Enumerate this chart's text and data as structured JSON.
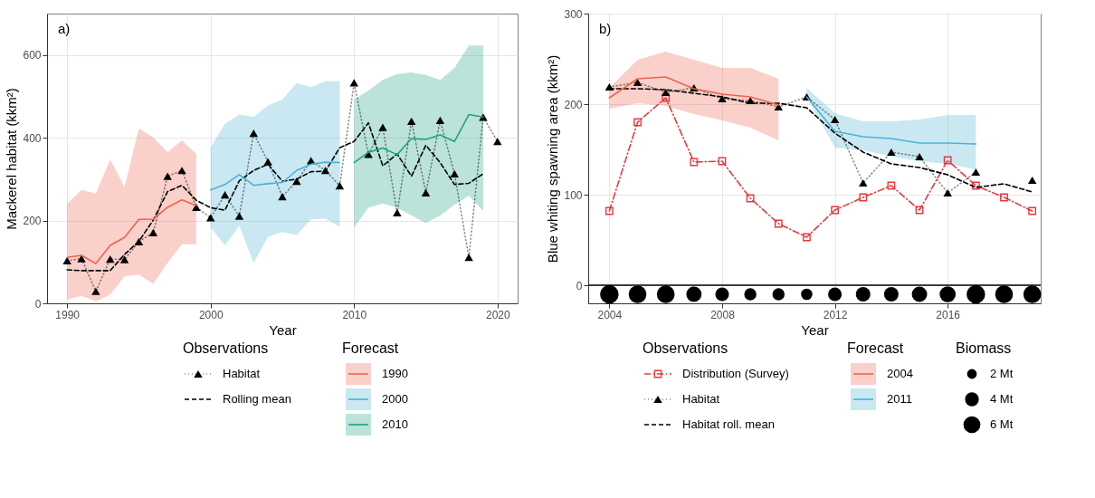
{
  "chart_data": [
    {
      "type": "line",
      "annotations": [
        "a)"
      ],
      "xlabel": "Year",
      "ylabel": "Mackerel habitat (kkm²)",
      "legend_title": [
        "Observations",
        "Forecast"
      ],
      "x": [
        1990,
        1991,
        1992,
        1993,
        1994,
        1995,
        1996,
        1997,
        1998,
        1999,
        2000,
        2001,
        2002,
        2003,
        2004,
        2005,
        2006,
        2007,
        2008,
        2009,
        2010,
        2011,
        2012,
        2013,
        2014,
        2015,
        2016,
        2017,
        2018,
        2019,
        2020
      ],
      "xlim": [
        1988.6,
        2021.4
      ],
      "xticks": [
        1990,
        2000,
        2010,
        2020
      ],
      "ylim": [
        0,
        700
      ],
      "yticks": [
        0,
        200,
        400,
        600
      ],
      "grid": true,
      "legend": "bottom",
      "series": [
        {
          "name": "Habitat",
          "color": "#000000",
          "line_style": "dotted",
          "marker": "triangle",
          "values": [
            103,
            108,
            29,
            107,
            106,
            149,
            171,
            307,
            321,
            232,
            207,
            262,
            211,
            411,
            342,
            258,
            295,
            345,
            321,
            284,
            533,
            360,
            425,
            219,
            440,
            267,
            442,
            313,
            111,
            450,
            391
          ]
        },
        {
          "name": "Rolling mean",
          "color": "#000000",
          "line_style": "dashed",
          "marker": "none",
          "values": [
            81,
            79,
            79,
            79,
            118,
            150,
            201,
            270,
            285,
            249,
            231,
            225,
            296,
            321,
            336,
            295,
            300,
            318,
            319,
            376,
            391,
            436,
            332,
            361,
            307,
            382,
            340,
            287,
            290,
            313,
            null
          ]
        },
        {
          "name": "1990",
          "color": "#f0624f",
          "line_style": "solid",
          "x": [
            1990,
            1991,
            1992,
            1993,
            1994,
            1995,
            1996,
            1997,
            1998,
            1999
          ],
          "values": [
            111,
            116,
            96,
            140,
            159,
            203,
            203,
            232,
            250,
            236
          ],
          "lower": [
            9,
            18,
            5,
            21,
            65,
            69,
            47,
            98,
            143,
            143
          ],
          "upper": [
            241,
            274,
            265,
            347,
            281,
            423,
            401,
            365,
            394,
            361
          ]
        },
        {
          "name": "2000",
          "color": "#4bb3d3",
          "line_style": "solid",
          "x": [
            2000,
            2001,
            2002,
            2003,
            2004,
            2005,
            2006,
            2007,
            2008,
            2009
          ],
          "values": [
            274,
            287,
            311,
            285,
            289,
            292,
            321,
            336,
            341,
            340
          ],
          "lower": [
            183,
            140,
            187,
            98,
            161,
            172,
            165,
            203,
            205,
            185
          ],
          "upper": [
            376,
            434,
            456,
            450,
            478,
            492,
            532,
            522,
            537,
            537
          ]
        },
        {
          "name": "2010",
          "color": "#1ea386",
          "line_style": "solid",
          "x": [
            2010,
            2011,
            2012,
            2013,
            2014,
            2015,
            2016,
            2017,
            2018,
            2019
          ],
          "values": [
            340,
            365,
            375,
            359,
            398,
            396,
            407,
            391,
            456,
            450
          ],
          "lower": [
            183,
            231,
            241,
            231,
            212,
            194,
            212,
            238,
            260,
            223
          ],
          "upper": [
            492,
            514,
            540,
            554,
            558,
            552,
            540,
            569,
            623,
            623
          ]
        }
      ]
    },
    {
      "type": "line",
      "annotations": [
        "b)"
      ],
      "xlabel": "Year",
      "ylabel": "Blue whiting spawning area (kkm²)",
      "legend_title": [
        "Observations",
        "Forecast",
        "Biomass"
      ],
      "x": [
        2004,
        2005,
        2006,
        2007,
        2008,
        2009,
        2010,
        2011,
        2012,
        2013,
        2014,
        2015,
        2016,
        2017,
        2018,
        2019
      ],
      "xlim": [
        2003.25,
        2019.3
      ],
      "xticks": [
        2004,
        2008,
        2012,
        2016
      ],
      "ylim": [
        -20,
        300
      ],
      "yticks": [
        0,
        100,
        200,
        300
      ],
      "grid": true,
      "legend": "bottom",
      "ref_lines": [
        {
          "axis": "y",
          "value": 0,
          "color": "#000000"
        }
      ],
      "size_legend": [
        {
          "value": 2,
          "label": "2 Mt"
        },
        {
          "value": 4,
          "label": "4 Mt"
        },
        {
          "value": 6,
          "label": "6 Mt"
        }
      ],
      "series": [
        {
          "name": "Distribution (Survey)",
          "color": "#e8383d",
          "line_style": "dashdot",
          "marker": "square",
          "values": [
            82,
            180,
            207,
            136,
            137,
            96,
            68,
            53,
            83,
            97,
            110,
            83,
            138,
            110,
            97,
            82
          ]
        },
        {
          "name": "Habitat",
          "color": "#000000",
          "line_style": "dotted",
          "marker": "triangle",
          "values": [
            219,
            224,
            213,
            218,
            206,
            204,
            197,
            208,
            183,
            113,
            147,
            142,
            102,
            125,
            null,
            116
          ]
        },
        {
          "name": "Habitat roll. mean",
          "color": "#000000",
          "line_style": "dashed",
          "marker": "none",
          "values": [
            217,
            217,
            216,
            212,
            208,
            201,
            201,
            196,
            168,
            147,
            134,
            130,
            122,
            108,
            112,
            103
          ]
        },
        {
          "name": "2004",
          "color": "#f0624f",
          "line_style": "solid",
          "x": [
            2004,
            2005,
            2006,
            2007,
            2008,
            2009,
            2010
          ],
          "values": [
            207,
            228,
            230,
            217,
            211,
            208,
            199
          ],
          "lower": [
            195,
            201,
            198,
            189,
            182,
            174,
            160
          ],
          "upper": [
            218,
            249,
            258,
            249,
            240,
            240,
            228
          ]
        },
        {
          "name": "2011",
          "color": "#4bb3d3",
          "line_style": "solid",
          "x": [
            2011,
            2012,
            2013,
            2014,
            2015,
            2016,
            2017
          ],
          "values": [
            208,
            170,
            164,
            162,
            157,
            157,
            156
          ],
          "lower": [
            208,
            152,
            149,
            142,
            137,
            134,
            128
          ],
          "upper": [
            218,
            190,
            181,
            181,
            183,
            188,
            188
          ]
        },
        {
          "type": "bubble",
          "color": "#000000",
          "values": [
            -10,
            -10,
            -10,
            -10,
            -10,
            -10,
            -10,
            -10,
            -10,
            -10,
            -10,
            -10,
            -10,
            -10,
            -10,
            -10
          ],
          "sizes": [
            7.2,
            6.6,
            6.6,
            4.9,
            3.9,
            3.1,
            3.1,
            2.7,
            3.9,
            4.4,
            4.4,
            4.9,
            5.4,
            7.2,
            6.6,
            6.6
          ]
        }
      ]
    }
  ]
}
